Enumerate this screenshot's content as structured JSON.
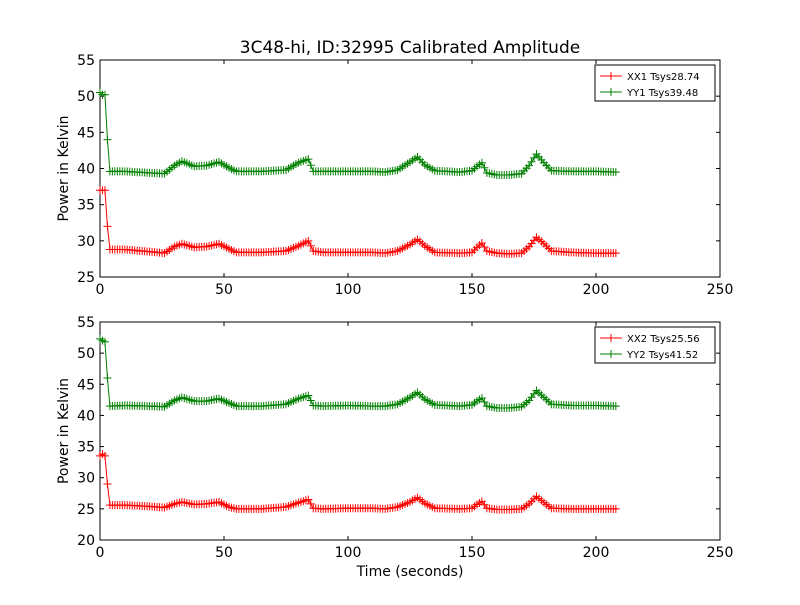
{
  "chart_data": [
    {
      "type": "line",
      "title": "3C48-hi, ID:32995 Calibrated Amplitude",
      "xlabel": "",
      "ylabel": "Power in Kelvin",
      "xlim": [
        0,
        250
      ],
      "ylim": [
        25,
        55
      ],
      "xticks": [
        "0",
        "50",
        "100",
        "150",
        "200",
        "250"
      ],
      "yticks": [
        "25",
        "30",
        "35",
        "40",
        "45",
        "50",
        "55"
      ],
      "legend_position": "top-right",
      "series": [
        {
          "name": "XX1 Tsys28.74",
          "color": "#ff0000",
          "marker": "plus",
          "points": [
            [
              0,
              37
            ],
            [
              1,
              37
            ],
            [
              2,
              37
            ],
            [
              3,
              32
            ],
            [
              4,
              28.8
            ],
            [
              10,
              28.8
            ],
            [
              20,
              28.5
            ],
            [
              26,
              28.3
            ],
            [
              30,
              29.2
            ],
            [
              33,
              29.6
            ],
            [
              38,
              29.1
            ],
            [
              43,
              29.2
            ],
            [
              48,
              29.6
            ],
            [
              52,
              28.9
            ],
            [
              55,
              28.4
            ],
            [
              65,
              28.4
            ],
            [
              75,
              28.6
            ],
            [
              80,
              29.3
            ],
            [
              84,
              30
            ],
            [
              86,
              28.6
            ],
            [
              90,
              28.4
            ],
            [
              100,
              28.4
            ],
            [
              110,
              28.4
            ],
            [
              115,
              28.3
            ],
            [
              120,
              28.6
            ],
            [
              125,
              29.5
            ],
            [
              128,
              30.2
            ],
            [
              131,
              29.3
            ],
            [
              135,
              28.4
            ],
            [
              145,
              28.3
            ],
            [
              150,
              28.4
            ],
            [
              152,
              29.1
            ],
            [
              154,
              29.7
            ],
            [
              156,
              28.6
            ],
            [
              160,
              28.3
            ],
            [
              165,
              28.2
            ],
            [
              170,
              28.3
            ],
            [
              173,
              29.2
            ],
            [
              176,
              30.5
            ],
            [
              179,
              29.6
            ],
            [
              182,
              28.6
            ],
            [
              190,
              28.4
            ],
            [
              200,
              28.3
            ],
            [
              208,
              28.3
            ]
          ]
        },
        {
          "name": "YY1 Tsys39.48",
          "color": "#008000",
          "marker": "plus",
          "points": [
            [
              0,
              50.5
            ],
            [
              1,
              50.2
            ],
            [
              2,
              50.2
            ],
            [
              3,
              44
            ],
            [
              4,
              39.6
            ],
            [
              10,
              39.6
            ],
            [
              20,
              39.4
            ],
            [
              26,
              39.3
            ],
            [
              30,
              40.4
            ],
            [
              33,
              41
            ],
            [
              38,
              40.3
            ],
            [
              43,
              40.4
            ],
            [
              48,
              40.9
            ],
            [
              52,
              40.1
            ],
            [
              55,
              39.6
            ],
            [
              65,
              39.6
            ],
            [
              75,
              39.8
            ],
            [
              80,
              40.8
            ],
            [
              84,
              41.3
            ],
            [
              86,
              39.6
            ],
            [
              90,
              39.6
            ],
            [
              100,
              39.6
            ],
            [
              110,
              39.6
            ],
            [
              115,
              39.5
            ],
            [
              120,
              39.8
            ],
            [
              125,
              40.9
            ],
            [
              128,
              41.6
            ],
            [
              131,
              40.5
            ],
            [
              135,
              39.7
            ],
            [
              145,
              39.5
            ],
            [
              150,
              39.7
            ],
            [
              152,
              40.3
            ],
            [
              154,
              40.8
            ],
            [
              156,
              39.4
            ],
            [
              160,
              39.1
            ],
            [
              165,
              39.1
            ],
            [
              170,
              39.3
            ],
            [
              173,
              40.4
            ],
            [
              176,
              42
            ],
            [
              179,
              40.8
            ],
            [
              182,
              39.7
            ],
            [
              190,
              39.6
            ],
            [
              200,
              39.6
            ],
            [
              208,
              39.5
            ]
          ]
        }
      ]
    },
    {
      "type": "line",
      "title": "",
      "xlabel": "Time (seconds)",
      "ylabel": "Power in Kelvin",
      "xlim": [
        0,
        250
      ],
      "ylim": [
        20,
        55
      ],
      "xticks": [
        "0",
        "50",
        "100",
        "150",
        "200",
        "250"
      ],
      "yticks": [
        "20",
        "25",
        "30",
        "35",
        "40",
        "45",
        "50",
        "55"
      ],
      "legend_position": "top-right",
      "series": [
        {
          "name": "XX2 Tsys25.56",
          "color": "#ff0000",
          "marker": "plus",
          "points": [
            [
              0,
              33.5
            ],
            [
              1,
              33.8
            ],
            [
              2,
              33.5
            ],
            [
              3,
              29
            ],
            [
              4,
              25.6
            ],
            [
              10,
              25.6
            ],
            [
              20,
              25.4
            ],
            [
              26,
              25.2
            ],
            [
              30,
              25.8
            ],
            [
              33,
              26.1
            ],
            [
              38,
              25.7
            ],
            [
              43,
              25.8
            ],
            [
              48,
              26.1
            ],
            [
              52,
              25.3
            ],
            [
              55,
              25
            ],
            [
              65,
              25
            ],
            [
              75,
              25.3
            ],
            [
              80,
              26
            ],
            [
              84,
              26.5
            ],
            [
              86,
              25.1
            ],
            [
              90,
              25
            ],
            [
              100,
              25.1
            ],
            [
              110,
              25.1
            ],
            [
              115,
              25
            ],
            [
              120,
              25.3
            ],
            [
              125,
              26.1
            ],
            [
              128,
              26.8
            ],
            [
              131,
              25.9
            ],
            [
              135,
              25.1
            ],
            [
              145,
              25
            ],
            [
              150,
              25.1
            ],
            [
              152,
              25.7
            ],
            [
              154,
              26.2
            ],
            [
              156,
              25.1
            ],
            [
              160,
              24.9
            ],
            [
              165,
              24.9
            ],
            [
              170,
              25
            ],
            [
              173,
              25.8
            ],
            [
              176,
              27
            ],
            [
              179,
              26
            ],
            [
              182,
              25.1
            ],
            [
              190,
              25
            ],
            [
              200,
              25
            ],
            [
              208,
              25
            ]
          ]
        },
        {
          "name": "YY2 Tsys41.52",
          "color": "#008000",
          "marker": "plus",
          "points": [
            [
              0,
              52.3
            ],
            [
              1,
              52
            ],
            [
              2,
              51.8
            ],
            [
              3,
              46
            ],
            [
              4,
              41.5
            ],
            [
              10,
              41.6
            ],
            [
              20,
              41.5
            ],
            [
              26,
              41.4
            ],
            [
              30,
              42.4
            ],
            [
              33,
              42.9
            ],
            [
              38,
              42.3
            ],
            [
              43,
              42.3
            ],
            [
              48,
              42.7
            ],
            [
              52,
              42
            ],
            [
              55,
              41.5
            ],
            [
              65,
              41.5
            ],
            [
              75,
              41.8
            ],
            [
              80,
              42.7
            ],
            [
              84,
              43.2
            ],
            [
              86,
              41.6
            ],
            [
              90,
              41.5
            ],
            [
              100,
              41.6
            ],
            [
              110,
              41.5
            ],
            [
              115,
              41.5
            ],
            [
              120,
              41.8
            ],
            [
              125,
              42.9
            ],
            [
              128,
              43.7
            ],
            [
              131,
              42.6
            ],
            [
              135,
              41.7
            ],
            [
              145,
              41.5
            ],
            [
              150,
              41.7
            ],
            [
              152,
              42.3
            ],
            [
              154,
              42.8
            ],
            [
              156,
              41.5
            ],
            [
              160,
              41.2
            ],
            [
              165,
              41.2
            ],
            [
              170,
              41.4
            ],
            [
              173,
              42.4
            ],
            [
              176,
              44
            ],
            [
              179,
              42.9
            ],
            [
              182,
              41.8
            ],
            [
              190,
              41.6
            ],
            [
              200,
              41.6
            ],
            [
              208,
              41.5
            ]
          ]
        }
      ]
    }
  ]
}
